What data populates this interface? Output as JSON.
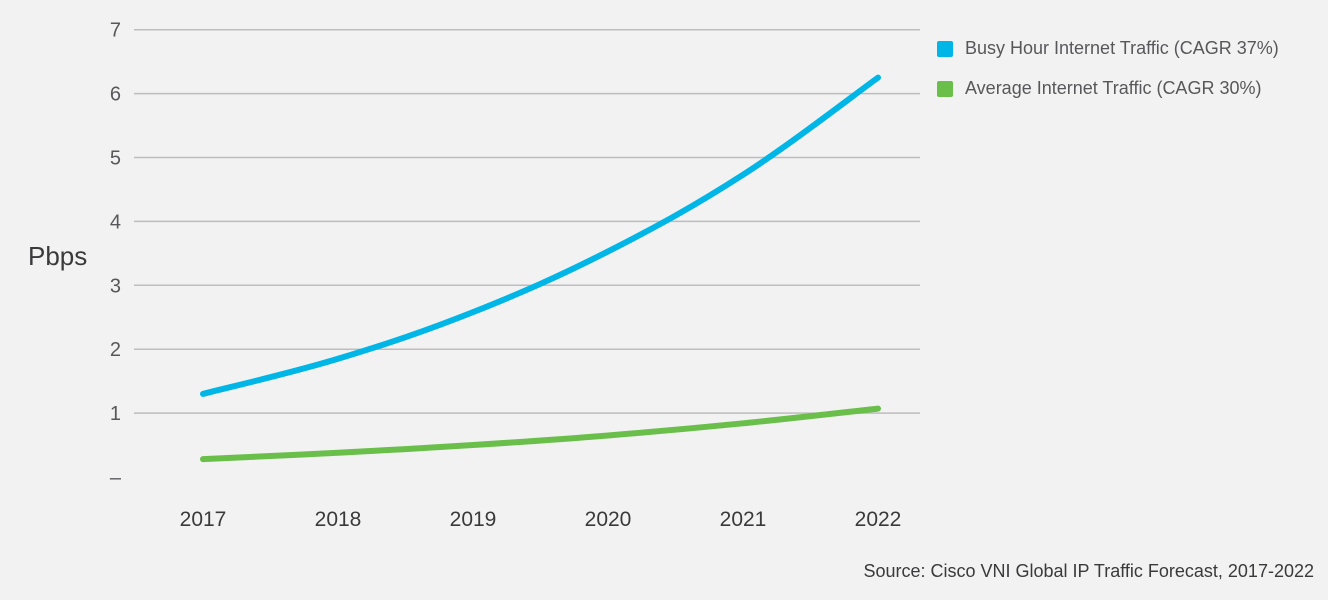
{
  "chart_data": {
    "type": "line",
    "title": "",
    "xlabel": "",
    "ylabel": "Pbps",
    "ylim": [
      0,
      7
    ],
    "y_ticks": [
      "–",
      "1",
      "2",
      "3",
      "4",
      "5",
      "6",
      "7"
    ],
    "categories": [
      "2017",
      "2018",
      "2019",
      "2020",
      "2021",
      "2022"
    ],
    "series": [
      {
        "name": "Busy Hour Internet Traffic (CAGR 37%)",
        "color": "#00b6e7",
        "values": [
          1.3,
          1.85,
          2.58,
          3.53,
          4.73,
          6.25
        ]
      },
      {
        "name": "Average Internet Traffic (CAGR 30%)",
        "color": "#6abf4b",
        "values": [
          0.28,
          0.38,
          0.5,
          0.65,
          0.84,
          1.07
        ]
      }
    ],
    "grid": true,
    "legend_position": "top-right",
    "source": "Source: Cisco VNI Global IP Traffic Forecast, 2017-2022"
  }
}
